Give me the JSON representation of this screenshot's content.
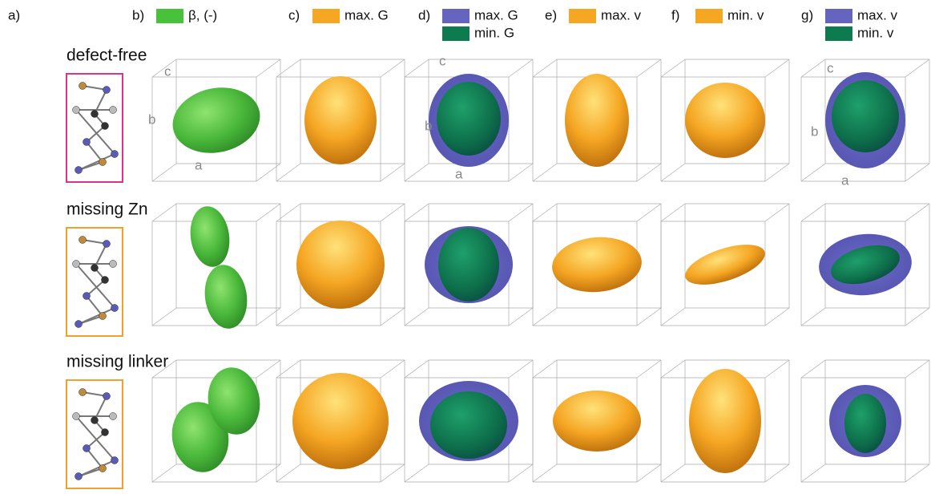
{
  "panels": [
    {
      "label": "a)",
      "legend": []
    },
    {
      "label": "b)",
      "legend": [
        "β, (-)"
      ]
    },
    {
      "label": "c)",
      "legend": [
        "max. G"
      ]
    },
    {
      "label": "d)",
      "legend": [
        "max. G",
        "min. G"
      ]
    },
    {
      "label": "e)",
      "legend": [
        "max. v"
      ]
    },
    {
      "label": "f)",
      "legend": [
        "min. v"
      ]
    },
    {
      "label": "g)",
      "legend": [
        "max. v",
        "min. v"
      ]
    }
  ],
  "rows": [
    "defect-free",
    "missing Zn",
    "missing linker"
  ],
  "axes": {
    "a": "a",
    "b": "b",
    "c": "c"
  }
}
